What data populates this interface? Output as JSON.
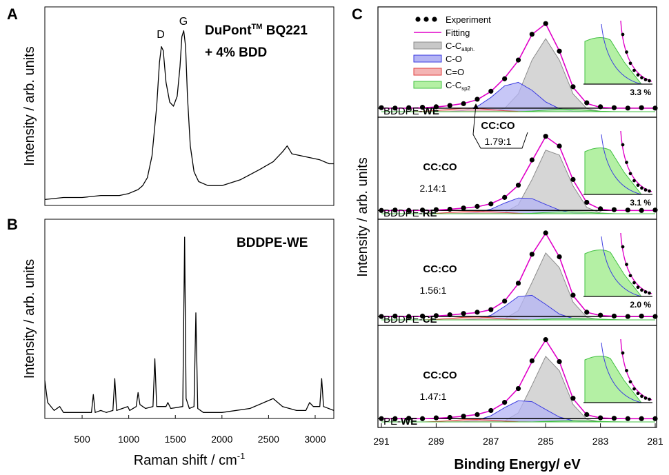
{
  "chart_data": [
    {
      "type": "line",
      "panel_letter": "A",
      "title": [
        "DuPont",
        "TM",
        " BQ221"
      ],
      "subtitle": "+ 4% BDD",
      "peak_labels": [
        "D",
        "G"
      ],
      "ylabel": "Intensity / arb. units",
      "xlim": [
        100,
        3200
      ],
      "ylim": [
        0,
        1
      ],
      "color": "#000000",
      "x": [
        100,
        300,
        500,
        700,
        900,
        1000,
        1100,
        1150,
        1200,
        1250,
        1300,
        1330,
        1350,
        1370,
        1400,
        1440,
        1480,
        1520,
        1550,
        1570,
        1590,
        1610,
        1630,
        1660,
        1700,
        1750,
        1850,
        2000,
        2200,
        2400,
        2550,
        2650,
        2700,
        2750,
        2850,
        2950,
        3050,
        3150,
        3200
      ],
      "values": [
        0.03,
        0.04,
        0.04,
        0.05,
        0.05,
        0.06,
        0.08,
        0.1,
        0.14,
        0.25,
        0.5,
        0.72,
        0.8,
        0.78,
        0.62,
        0.52,
        0.5,
        0.55,
        0.7,
        0.85,
        0.88,
        0.8,
        0.55,
        0.3,
        0.17,
        0.12,
        0.1,
        0.1,
        0.13,
        0.18,
        0.22,
        0.27,
        0.3,
        0.26,
        0.25,
        0.24,
        0.23,
        0.21,
        0.21
      ]
    },
    {
      "type": "line",
      "panel_letter": "B",
      "title": "BDDPE-WE",
      "ylabel": "Intensity / arb. units",
      "xlabel": "Raman shift / cm",
      "xlabel_sup": "-1",
      "xlim": [
        100,
        3200
      ],
      "ylim": [
        0,
        1
      ],
      "xticks": [
        500,
        1000,
        1500,
        2000,
        2500,
        3000
      ],
      "color": "#000000",
      "x": [
        100,
        130,
        200,
        260,
        300,
        500,
        600,
        620,
        640,
        700,
        760,
        830,
        850,
        870,
        990,
        1010,
        1080,
        1100,
        1120,
        1180,
        1260,
        1280,
        1300,
        1400,
        1420,
        1450,
        1580,
        1600,
        1615,
        1650,
        1700,
        1720,
        1740,
        1800,
        2000,
        2300,
        2450,
        2550,
        2650,
        2800,
        2900,
        2940,
        2980,
        3050,
        3070,
        3090,
        3200
      ],
      "values": [
        0.19,
        0.08,
        0.04,
        0.06,
        0.03,
        0.03,
        0.03,
        0.12,
        0.03,
        0.04,
        0.03,
        0.04,
        0.2,
        0.04,
        0.06,
        0.04,
        0.06,
        0.13,
        0.07,
        0.05,
        0.06,
        0.3,
        0.06,
        0.06,
        0.08,
        0.05,
        0.06,
        0.91,
        0.1,
        0.05,
        0.06,
        0.53,
        0.05,
        0.03,
        0.03,
        0.05,
        0.08,
        0.1,
        0.06,
        0.04,
        0.04,
        0.08,
        0.06,
        0.06,
        0.2,
        0.06,
        0.04
      ]
    },
    {
      "type": "area",
      "panel_letter": "C",
      "xlabel": "Binding Energy/ eV",
      "ylabel": "Intensity / arb. units",
      "xlim": [
        291,
        281
      ],
      "ylim": [
        0,
        1.1
      ],
      "xticks": [
        291,
        289,
        287,
        285,
        283,
        281
      ],
      "x": [
        291,
        290.5,
        290,
        289.5,
        289,
        288.5,
        288,
        287.5,
        287,
        286.5,
        286,
        285.5,
        285,
        284.5,
        284,
        283.5,
        283,
        282.5,
        282,
        281.5,
        281
      ],
      "legend": [
        {
          "name": "Experiment",
          "color": "#000000"
        },
        {
          "name": "Fitting",
          "color": "#e000c8"
        },
        {
          "name": "C-C",
          "subscript": "aliph.",
          "color": "#8c8c8c"
        },
        {
          "name": "C-O",
          "color": "#3a3ae0"
        },
        {
          "name": "C=O",
          "color": "#e04040"
        },
        {
          "name": "C-C",
          "subscript": "sp2",
          "color": "#40c040"
        }
      ],
      "panels": [
        {
          "label": [
            "BDDPE-",
            "WE"
          ],
          "ratio_title": "CC:CO",
          "ratio": "1.79:1",
          "inset_label": "3.3 %",
          "series": [
            {
              "values": [
                0.045,
                0.04,
                0.045,
                0.05,
                0.055,
                0.07,
                0.09,
                0.14,
                0.23,
                0.37,
                0.58,
                0.87,
                0.99,
                0.68,
                0.28,
                0.1,
                0.055,
                0.045,
                0.04,
                0.045,
                0.04
              ]
            },
            {
              "values": [
                0.04,
                0.04,
                0.04,
                0.044,
                0.053,
                0.069,
                0.092,
                0.135,
                0.227,
                0.377,
                0.573,
                0.868,
                0.988,
                0.683,
                0.274,
                0.092,
                0.048,
                0.041,
                0.04,
                0.04,
                0.04
              ]
            },
            {
              "values": [
                0,
                0,
                0,
                0,
                0,
                0,
                0,
                0,
                0.003,
                0.036,
                0.2,
                0.58,
                0.82,
                0.58,
                0.2,
                0.036,
                0.003,
                0,
                0,
                0,
                0
              ]
            },
            {
              "values": [
                0,
                0,
                0,
                0,
                0,
                0.002,
                0.013,
                0.058,
                0.16,
                0.29,
                0.33,
                0.24,
                0.11,
                0.034,
                0.007,
                0.001,
                0,
                0,
                0,
                0,
                0
              ]
            },
            {
              "values": [
                0,
                0,
                0,
                0.004,
                0.013,
                0.027,
                0.039,
                0.037,
                0.024,
                0.011,
                0.003,
                0,
                0,
                0,
                0,
                0,
                0,
                0,
                0,
                0,
                0
              ]
            },
            {
              "values": [
                0,
                0,
                0,
                0,
                0,
                0,
                0,
                0,
                0,
                0,
                0,
                0.007,
                0.018,
                0.029,
                0.027,
                0.015,
                0.005,
                0.001,
                0,
                0,
                0
              ]
            }
          ]
        },
        {
          "label": [
            "BDDPE-",
            "RE"
          ],
          "ratio_title": "CC:CO",
          "ratio": "2.14:1",
          "inset_label": "3.1 %",
          "series": [
            {
              "values": [
                0.04,
                0.045,
                0.04,
                0.045,
                0.05,
                0.055,
                0.07,
                0.09,
                0.12,
                0.2,
                0.35,
                0.66,
                0.95,
                0.83,
                0.42,
                0.14,
                0.06,
                0.05,
                0.045,
                0.04,
                0.045
              ]
            },
            {
              "values": [
                0.04,
                0.04,
                0.04,
                0.041,
                0.045,
                0.054,
                0.069,
                0.085,
                0.123,
                0.199,
                0.348,
                0.65,
                0.948,
                0.828,
                0.415,
                0.136,
                0.055,
                0.041,
                0.04,
                0.04,
                0.04
              ]
            },
            {
              "values": [
                0,
                0,
                0,
                0,
                0,
                0,
                0,
                0,
                0.001,
                0.015,
                0.11,
                0.42,
                0.78,
                0.72,
                0.34,
                0.078,
                0.009,
                0,
                0,
                0,
                0
              ]
            },
            {
              "values": [
                0,
                0,
                0,
                0,
                0,
                0,
                0.003,
                0.015,
                0.056,
                0.13,
                0.193,
                0.185,
                0.113,
                0.045,
                0.011,
                0.002,
                0,
                0,
                0,
                0,
                0
              ]
            },
            {
              "values": [
                0,
                0,
                0,
                0,
                0.005,
                0.014,
                0.026,
                0.03,
                0.026,
                0.014,
                0.005,
                0,
                0,
                0,
                0,
                0,
                0,
                0,
                0,
                0,
                0
              ]
            },
            {
              "values": [
                0,
                0,
                0,
                0,
                0,
                0,
                0,
                0,
                0,
                0,
                0,
                0.005,
                0.015,
                0.023,
                0.024,
                0.016,
                0.006,
                0,
                0,
                0,
                0
              ]
            }
          ]
        },
        {
          "label": [
            "BDDPE-",
            "CE"
          ],
          "ratio_title": "CC:CO",
          "ratio": "1.56:1",
          "inset_label": "2.0 %",
          "series": [
            {
              "values": [
                0.04,
                0.045,
                0.04,
                0.045,
                0.05,
                0.06,
                0.075,
                0.09,
                0.12,
                0.22,
                0.43,
                0.77,
                1.02,
                0.74,
                0.29,
                0.09,
                0.055,
                0.045,
                0.04,
                0.045,
                0.04
              ]
            },
            {
              "values": [
                0.04,
                0.04,
                0.04,
                0.04,
                0.046,
                0.057,
                0.072,
                0.086,
                0.12,
                0.22,
                0.425,
                0.768,
                1.016,
                0.739,
                0.285,
                0.089,
                0.051,
                0.043,
                0.04,
                0.04,
                0.04
              ]
            },
            {
              "values": [
                0,
                0,
                0,
                0,
                0,
                0,
                0,
                0,
                0,
                0.012,
                0.108,
                0.44,
                0.785,
                0.614,
                0.209,
                0.031,
                0.002,
                0,
                0,
                0,
                0
              ]
            },
            {
              "values": [
                0,
                0,
                0,
                0,
                0,
                0,
                0.001,
                0.011,
                0.054,
                0.157,
                0.274,
                0.288,
                0.182,
                0.069,
                0.016,
                0.002,
                0,
                0,
                0,
                0,
                0
              ]
            },
            {
              "values": [
                0,
                0,
                0,
                0,
                0.006,
                0.017,
                0.031,
                0.035,
                0.026,
                0.011,
                0.003,
                0,
                0,
                0,
                0,
                0,
                0,
                0,
                0,
                0,
                0
              ]
            },
            {
              "values": [
                0,
                0,
                0,
                0,
                0,
                0,
                0,
                0,
                0,
                0,
                0,
                0,
                0.009,
                0.016,
                0.02,
                0.016,
                0.009,
                0.003,
                0,
                0,
                0
              ]
            }
          ]
        },
        {
          "label": [
            "PE-",
            "WE"
          ],
          "ratio_title": "CC:CO",
          "ratio": "1.47:1",
          "series": [
            {
              "values": [
                0.04,
                0.04,
                0.045,
                0.04,
                0.05,
                0.055,
                0.07,
                0.09,
                0.14,
                0.24,
                0.41,
                0.75,
                1.01,
                0.74,
                0.29,
                0.09,
                0.05,
                0.045,
                0.04,
                0.04,
                0.04
              ]
            },
            {
              "values": [
                0.04,
                0.04,
                0.04,
                0.04,
                0.045,
                0.055,
                0.07,
                0.091,
                0.137,
                0.236,
                0.413,
                0.74,
                1.005,
                0.741,
                0.284,
                0.086,
                0.049,
                0.042,
                0.04,
                0.04,
                0.04
              ]
            },
            {
              "values": [
                0,
                0,
                0,
                0,
                0,
                0,
                0,
                0,
                0,
                0.012,
                0.111,
                0.451,
                0.805,
                0.629,
                0.214,
                0.032,
                0.002,
                0,
                0,
                0,
                0
              ]
            },
            {
              "values": [
                0,
                0,
                0,
                0,
                0,
                0,
                0.003,
                0.021,
                0.075,
                0.175,
                0.26,
                0.249,
                0.153,
                0.06,
                0.015,
                0.002,
                0,
                0,
                0,
                0,
                0
              ]
            },
            {
              "values": [
                0,
                0,
                0,
                0,
                0.005,
                0.015,
                0.027,
                0.03,
                0.022,
                0.009,
                0.002,
                0,
                0,
                0,
                0,
                0,
                0,
                0,
                0,
                0,
                0
              ]
            },
            {
              "values": [
                0,
                0,
                0,
                0,
                0,
                0,
                0,
                0,
                0,
                0,
                0,
                0,
                0.007,
                0.012,
                0.015,
                0.012,
                0.007,
                0.002,
                0,
                0,
                0
              ]
            }
          ]
        }
      ]
    }
  ]
}
